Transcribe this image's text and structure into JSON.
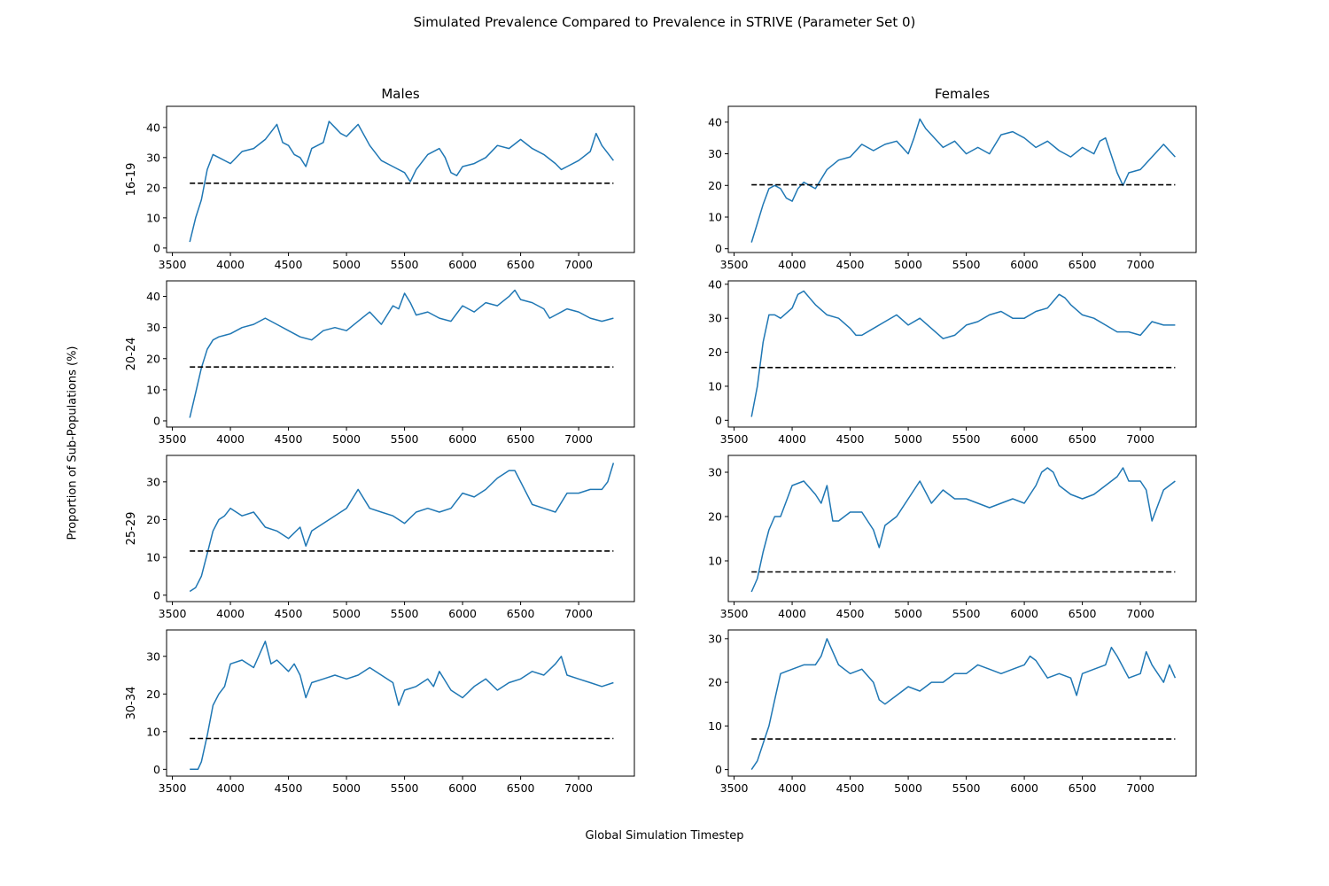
{
  "figure": {
    "title": "Simulated Prevalence Compared to Prevalence in STRIVE (Parameter Set 0)",
    "xlabel": "Global Simulation Timestep",
    "ylabel": "Proportion of Sub-Populations (%)",
    "columns": [
      "Males",
      "Females"
    ],
    "rows": [
      "16-19",
      "20-24",
      "25-29",
      "30-34"
    ]
  },
  "colors": {
    "simulated": "#1f77b4",
    "reference": "#000000"
  },
  "chart_data": [
    {
      "type": "line",
      "column": "Males",
      "row": "16-19",
      "xlim": [
        3450,
        7480
      ],
      "ylim": [
        -1.5,
        47
      ],
      "xticks": [
        3500,
        4000,
        4500,
        5000,
        5500,
        6000,
        6500,
        7000,
        7500
      ],
      "yticks": [
        0,
        10,
        20,
        30,
        40
      ],
      "series": [
        {
          "style": "solid",
          "x": [
            3650,
            3700,
            3750,
            3800,
            3850,
            3900,
            4000,
            4100,
            4200,
            4300,
            4400,
            4450,
            4500,
            4550,
            4600,
            4650,
            4700,
            4800,
            4850,
            4900,
            4950,
            5000,
            5050,
            5100,
            5200,
            5300,
            5400,
            5500,
            5550,
            5600,
            5700,
            5800,
            5850,
            5900,
            5950,
            6000,
            6100,
            6200,
            6300,
            6400,
            6500,
            6600,
            6700,
            6800,
            6850,
            6900,
            7000,
            7100,
            7150,
            7200,
            7300
          ],
          "y": [
            2,
            10,
            16,
            26,
            31,
            30,
            28,
            32,
            33,
            36,
            41,
            35,
            34,
            31,
            30,
            27,
            33,
            35,
            42,
            40,
            38,
            37,
            39,
            41,
            34,
            29,
            27,
            25,
            22,
            26,
            31,
            33,
            30,
            25,
            24,
            27,
            28,
            30,
            34,
            33,
            36,
            33,
            31,
            28,
            26,
            27,
            29,
            32,
            38,
            34,
            29
          ]
        },
        {
          "style": "dashed",
          "x": [
            3650,
            7300
          ],
          "y": [
            21.5,
            21.5
          ]
        }
      ]
    },
    {
      "type": "line",
      "column": "Females",
      "row": "16-19",
      "xlim": [
        3450,
        7480
      ],
      "ylim": [
        -1.2,
        45
      ],
      "xticks": [
        3500,
        4000,
        4500,
        5000,
        5500,
        6000,
        6500,
        7000,
        7500
      ],
      "yticks": [
        0,
        10,
        20,
        30,
        40
      ],
      "series": [
        {
          "style": "solid",
          "x": [
            3650,
            3700,
            3750,
            3800,
            3850,
            3900,
            3950,
            4000,
            4050,
            4100,
            4200,
            4300,
            4400,
            4500,
            4600,
            4700,
            4800,
            4900,
            5000,
            5050,
            5100,
            5150,
            5200,
            5300,
            5400,
            5500,
            5600,
            5700,
            5800,
            5900,
            6000,
            6100,
            6200,
            6300,
            6400,
            6500,
            6600,
            6650,
            6700,
            6800,
            6850,
            6900,
            7000,
            7050,
            7100,
            7150,
            7200,
            7300
          ],
          "y": [
            2,
            8,
            14,
            19,
            20,
            19,
            16,
            15,
            19,
            21,
            19,
            25,
            28,
            29,
            33,
            31,
            33,
            34,
            30,
            35,
            41,
            38,
            36,
            32,
            34,
            30,
            32,
            30,
            36,
            37,
            35,
            32,
            34,
            31,
            29,
            32,
            30,
            34,
            35,
            24,
            20,
            24,
            25,
            27,
            29,
            31,
            33,
            29
          ]
        },
        {
          "style": "dashed",
          "x": [
            3650,
            7300
          ],
          "y": [
            20.2,
            20.2
          ]
        }
      ]
    },
    {
      "type": "line",
      "column": "Males",
      "row": "20-24",
      "xlim": [
        3450,
        7480
      ],
      "ylim": [
        -2,
        45
      ],
      "xticks": [
        3500,
        4000,
        4500,
        5000,
        5500,
        6000,
        6500,
        7000,
        7500
      ],
      "yticks": [
        0,
        10,
        20,
        30,
        40
      ],
      "series": [
        {
          "style": "solid",
          "x": [
            3650,
            3700,
            3750,
            3800,
            3850,
            3900,
            4000,
            4100,
            4200,
            4300,
            4400,
            4500,
            4600,
            4700,
            4800,
            4900,
            5000,
            5100,
            5200,
            5300,
            5400,
            5450,
            5500,
            5550,
            5600,
            5700,
            5800,
            5900,
            6000,
            6100,
            6200,
            6300,
            6400,
            6450,
            6500,
            6600,
            6700,
            6750,
            6800,
            6900,
            7000,
            7100,
            7200,
            7300
          ],
          "y": [
            1,
            9,
            17,
            23,
            26,
            27,
            28,
            30,
            31,
            33,
            31,
            29,
            27,
            26,
            29,
            30,
            29,
            32,
            35,
            31,
            37,
            36,
            41,
            38,
            34,
            35,
            33,
            32,
            37,
            35,
            38,
            37,
            40,
            42,
            39,
            38,
            36,
            33,
            34,
            36,
            35,
            33,
            32,
            33
          ]
        },
        {
          "style": "dashed",
          "x": [
            3650,
            7300
          ],
          "y": [
            17.3,
            17.3
          ]
        }
      ]
    },
    {
      "type": "line",
      "column": "Females",
      "row": "20-24",
      "xlim": [
        3450,
        7480
      ],
      "ylim": [
        -2,
        41
      ],
      "xticks": [
        3500,
        4000,
        4500,
        5000,
        5500,
        6000,
        6500,
        7000,
        7500
      ],
      "yticks": [
        0,
        10,
        20,
        30,
        40
      ],
      "series": [
        {
          "style": "solid",
          "x": [
            3650,
            3700,
            3750,
            3800,
            3850,
            3900,
            4000,
            4050,
            4100,
            4150,
            4200,
            4300,
            4400,
            4500,
            4550,
            4600,
            4700,
            4800,
            4900,
            5000,
            5100,
            5200,
            5300,
            5400,
            5500,
            5600,
            5700,
            5800,
            5900,
            6000,
            6100,
            6200,
            6250,
            6300,
            6350,
            6400,
            6500,
            6600,
            6700,
            6800,
            6900,
            7000,
            7100,
            7200,
            7300
          ],
          "y": [
            1,
            10,
            23,
            31,
            31,
            30,
            33,
            37,
            38,
            36,
            34,
            31,
            30,
            27,
            25,
            25,
            27,
            29,
            31,
            28,
            30,
            27,
            24,
            25,
            28,
            29,
            31,
            32,
            30,
            30,
            32,
            33,
            35,
            37,
            36,
            34,
            31,
            30,
            28,
            26,
            26,
            25,
            29,
            28,
            28
          ]
        },
        {
          "style": "dashed",
          "x": [
            3650,
            7300
          ],
          "y": [
            15.5,
            15.5
          ]
        }
      ]
    },
    {
      "type": "line",
      "column": "Males",
      "row": "25-29",
      "xlim": [
        3450,
        7480
      ],
      "ylim": [
        -1.7,
        37
      ],
      "xticks": [
        3500,
        4000,
        4500,
        5000,
        5500,
        6000,
        6500,
        7000,
        7500
      ],
      "yticks": [
        0,
        10,
        20,
        30
      ],
      "series": [
        {
          "style": "solid",
          "x": [
            3650,
            3700,
            3750,
            3800,
            3850,
            3900,
            3950,
            4000,
            4100,
            4200,
            4300,
            4400,
            4500,
            4600,
            4650,
            4700,
            4800,
            4900,
            5000,
            5100,
            5200,
            5300,
            5400,
            5500,
            5600,
            5700,
            5800,
            5900,
            6000,
            6100,
            6200,
            6300,
            6400,
            6450,
            6500,
            6600,
            6700,
            6800,
            6900,
            7000,
            7100,
            7200,
            7250,
            7300
          ],
          "y": [
            1,
            2,
            5,
            11,
            17,
            20,
            21,
            23,
            21,
            22,
            18,
            17,
            15,
            18,
            13,
            17,
            19,
            21,
            23,
            28,
            23,
            22,
            21,
            19,
            22,
            23,
            22,
            23,
            27,
            26,
            28,
            31,
            33,
            33,
            30,
            24,
            23,
            22,
            27,
            27,
            28,
            28,
            30,
            35
          ]
        },
        {
          "style": "dashed",
          "x": [
            3650,
            7300
          ],
          "y": [
            11.7,
            11.7
          ]
        }
      ]
    },
    {
      "type": "line",
      "column": "Females",
      "row": "25-29",
      "xlim": [
        3450,
        7480
      ],
      "ylim": [
        0.8,
        33.8
      ],
      "xticks": [
        3500,
        4000,
        4500,
        5000,
        5500,
        6000,
        6500,
        7000,
        7500
      ],
      "yticks": [
        10,
        20,
        30
      ],
      "series": [
        {
          "style": "solid",
          "x": [
            3650,
            3700,
            3750,
            3800,
            3850,
            3900,
            4000,
            4100,
            4200,
            4250,
            4300,
            4350,
            4400,
            4500,
            4600,
            4700,
            4750,
            4800,
            4900,
            5000,
            5100,
            5200,
            5300,
            5400,
            5500,
            5600,
            5700,
            5800,
            5900,
            6000,
            6100,
            6150,
            6200,
            6250,
            6300,
            6400,
            6500,
            6600,
            6700,
            6800,
            6850,
            6900,
            7000,
            7050,
            7100,
            7200,
            7300
          ],
          "y": [
            3,
            6,
            12,
            17,
            20,
            20,
            27,
            28,
            25,
            23,
            27,
            19,
            19,
            21,
            21,
            17,
            13,
            18,
            20,
            24,
            28,
            23,
            26,
            24,
            24,
            23,
            22,
            23,
            24,
            23,
            27,
            30,
            31,
            30,
            27,
            25,
            24,
            25,
            27,
            29,
            31,
            28,
            28,
            26,
            19,
            26,
            28
          ]
        },
        {
          "style": "dashed",
          "x": [
            3650,
            7300
          ],
          "y": [
            7.5,
            7.5
          ]
        }
      ]
    },
    {
      "type": "line",
      "column": "Males",
      "row": "30-34",
      "xlim": [
        3450,
        7480
      ],
      "ylim": [
        -1.8,
        37
      ],
      "xticks": [
        3500,
        4000,
        4500,
        5000,
        5500,
        6000,
        6500,
        7000,
        7500
      ],
      "yticks": [
        0,
        10,
        20,
        30
      ],
      "series": [
        {
          "style": "solid",
          "x": [
            3650,
            3700,
            3720,
            3750,
            3800,
            3850,
            3900,
            3950,
            4000,
            4100,
            4200,
            4300,
            4350,
            4400,
            4500,
            4550,
            4600,
            4650,
            4700,
            4800,
            4900,
            5000,
            5100,
            5200,
            5300,
            5400,
            5450,
            5500,
            5600,
            5700,
            5750,
            5800,
            5900,
            6000,
            6100,
            6200,
            6300,
            6400,
            6500,
            6600,
            6700,
            6800,
            6850,
            6900,
            7000,
            7100,
            7200,
            7300
          ],
          "y": [
            0,
            0,
            0,
            2,
            9,
            17,
            20,
            22,
            28,
            29,
            27,
            34,
            28,
            29,
            26,
            28,
            25,
            19,
            23,
            24,
            25,
            24,
            25,
            27,
            25,
            23,
            17,
            21,
            22,
            24,
            22,
            26,
            21,
            19,
            22,
            24,
            21,
            23,
            24,
            26,
            25,
            28,
            30,
            25,
            24,
            23,
            22,
            23
          ]
        },
        {
          "style": "dashed",
          "x": [
            3650,
            7300
          ],
          "y": [
            8.2,
            8.2
          ]
        }
      ]
    },
    {
      "type": "line",
      "column": "Females",
      "row": "30-34",
      "xlim": [
        3450,
        7480
      ],
      "ylim": [
        -1.5,
        32
      ],
      "xticks": [
        3500,
        4000,
        4500,
        5000,
        5500,
        6000,
        6500,
        7000,
        7500
      ],
      "yticks": [
        0,
        10,
        20,
        30
      ],
      "series": [
        {
          "style": "solid",
          "x": [
            3650,
            3700,
            3750,
            3800,
            3850,
            3900,
            4000,
            4100,
            4200,
            4250,
            4300,
            4350,
            4400,
            4500,
            4600,
            4700,
            4750,
            4800,
            4900,
            5000,
            5100,
            5200,
            5300,
            5400,
            5500,
            5600,
            5700,
            5800,
            5900,
            6000,
            6050,
            6100,
            6200,
            6300,
            6400,
            6450,
            6500,
            6600,
            6700,
            6750,
            6800,
            6900,
            7000,
            7050,
            7100,
            7200,
            7250,
            7300
          ],
          "y": [
            0,
            2,
            6,
            10,
            16,
            22,
            23,
            24,
            24,
            26,
            30,
            27,
            24,
            22,
            23,
            20,
            16,
            15,
            17,
            19,
            18,
            20,
            20,
            22,
            22,
            24,
            23,
            22,
            23,
            24,
            26,
            25,
            21,
            22,
            21,
            17,
            22,
            23,
            24,
            28,
            26,
            21,
            22,
            27,
            24,
            20,
            24,
            21
          ]
        },
        {
          "style": "dashed",
          "x": [
            3650,
            7300
          ],
          "y": [
            7,
            7
          ]
        }
      ]
    }
  ]
}
